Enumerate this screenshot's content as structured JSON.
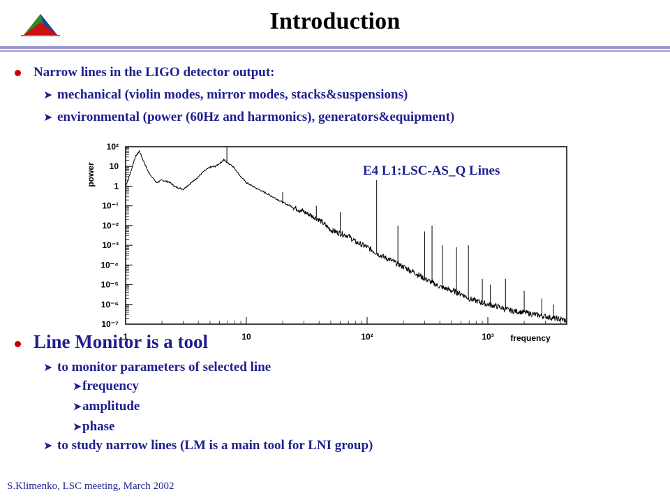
{
  "slide": {
    "title": "Introduction",
    "bullet1": "Narrow lines in the LIGO detector output:",
    "bullet1_subs": [
      "mechanical (violin modes, mirror modes, stacks&suspensions)",
      "environmental (power (60Hz and harmonics), generators&equipment)"
    ],
    "bullet2": "Line Monitor is a tool",
    "bullet2_subs": [
      "to monitor parameters of selected line",
      "to study narrow lines  (LM is a main tool for LNI group)"
    ],
    "bullet2_subsubs": [
      "frequency",
      "amplitude",
      "phase"
    ],
    "footer": "S.Klimenko, LSC meeting, March 2002"
  },
  "colors": {
    "text": "#1f1f8f",
    "bullet": "#cc0000",
    "rule": "#9999cc"
  },
  "icons": {
    "sub_bullet": "arrowhead-icon",
    "logo": "pyramid-logo-icon"
  },
  "chart_data": {
    "type": "line",
    "title": "E4 L1:LSC-AS_Q Lines",
    "xlabel": "frequency",
    "ylabel": "power",
    "xscale": "log",
    "yscale": "log",
    "xlim": [
      1,
      4500
    ],
    "ylim": [
      1e-07,
      100
    ],
    "x_tick_labels": [
      "1",
      "10",
      "10²",
      "10³"
    ],
    "y_tick_labels": [
      "10²",
      "10",
      "1",
      "10⁻¹",
      "10⁻²",
      "10⁻³",
      "10⁻⁴",
      "10⁻⁵",
      "10⁻⁶",
      "10⁻⁷"
    ],
    "grid": false,
    "series": [
      {
        "points": [
          [
            1.0,
            1.0
          ],
          [
            1.1,
            5.0
          ],
          [
            1.2,
            30.0
          ],
          [
            1.3,
            60.0
          ],
          [
            1.4,
            20.0
          ],
          [
            1.55,
            5.0
          ],
          [
            1.8,
            1.5
          ],
          [
            2.0,
            2.0
          ],
          [
            2.3,
            1.6
          ],
          [
            2.6,
            0.9
          ],
          [
            3.0,
            0.7
          ],
          [
            3.5,
            1.5
          ],
          [
            4.0,
            3.0
          ],
          [
            4.5,
            6.0
          ],
          [
            5.0,
            9.0
          ],
          [
            5.5,
            10.0
          ],
          [
            6.0,
            14.0
          ],
          [
            6.5,
            22.0
          ],
          [
            7.0,
            15.0
          ],
          [
            7.5,
            12.0
          ],
          [
            8.0,
            8.0
          ],
          [
            9.0,
            3.0
          ],
          [
            10.0,
            1.5
          ],
          [
            12.0,
            0.8
          ],
          [
            15.0,
            0.4
          ],
          [
            20.0,
            0.15
          ],
          [
            25.0,
            0.08
          ],
          [
            30.0,
            0.05
          ],
          [
            40.0,
            0.02
          ],
          [
            50.0,
            0.006
          ],
          [
            60.0,
            0.004
          ],
          [
            70.0,
            0.003
          ],
          [
            80.0,
            0.0015
          ],
          [
            100.0,
            0.0008
          ],
          [
            130.0,
            0.0003
          ],
          [
            150.0,
            0.0002
          ],
          [
            200.0,
            8e-05
          ],
          [
            250.0,
            4e-05
          ],
          [
            300.0,
            2e-05
          ],
          [
            400.0,
            8e-06
          ],
          [
            500.0,
            5e-06
          ],
          [
            600.0,
            3.5e-06
          ],
          [
            700.0,
            2e-06
          ],
          [
            800.0,
            1.5e-06
          ],
          [
            1000.0,
            1e-06
          ],
          [
            1200.0,
            8e-07
          ],
          [
            1500.0,
            5e-07
          ],
          [
            2000.0,
            4e-07
          ],
          [
            2500.0,
            3e-07
          ],
          [
            3000.0,
            2.5e-07
          ],
          [
            3500.0,
            2e-07
          ],
          [
            4000.0,
            1.8e-07
          ],
          [
            4500.0,
            1.5e-07
          ]
        ]
      }
    ],
    "lines": [
      {
        "x": 6.9,
        "y": 100
      },
      {
        "x": 20,
        "y": 0.5
      },
      {
        "x": 38,
        "y": 0.1
      },
      {
        "x": 60,
        "y": 0.05
      },
      {
        "x": 120,
        "y": 2
      },
      {
        "x": 180,
        "y": 0.01
      },
      {
        "x": 300,
        "y": 0.005
      },
      {
        "x": 345,
        "y": 0.01
      },
      {
        "x": 420,
        "y": 0.001
      },
      {
        "x": 550,
        "y": 0.0008
      },
      {
        "x": 690,
        "y": 0.001
      },
      {
        "x": 900,
        "y": 2e-05
      },
      {
        "x": 1050,
        "y": 1e-05
      },
      {
        "x": 1400,
        "y": 2e-05
      },
      {
        "x": 2000,
        "y": 5e-06
      },
      {
        "x": 2800,
        "y": 2e-06
      },
      {
        "x": 3500,
        "y": 1e-06
      }
    ]
  }
}
